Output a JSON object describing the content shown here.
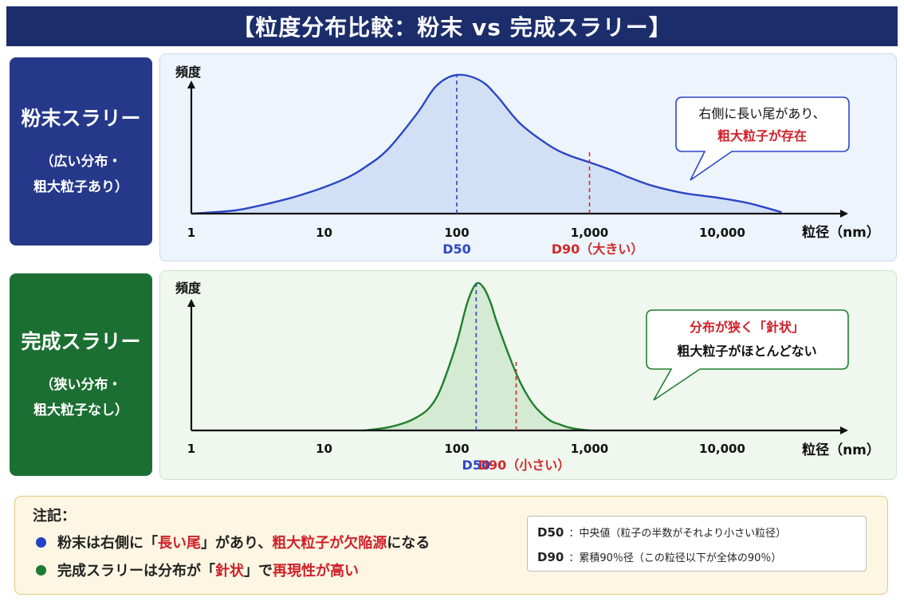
{
  "title": "【粒度分布比較：粉末 vs 完成スラリー】",
  "side_labels": {
    "powder": {
      "main": "粉末スラリー",
      "sub1": "（広い分布・",
      "sub2": "粗大粒子あり）"
    },
    "finished": {
      "main": "完成スラリー",
      "sub1": "（狭い分布・",
      "sub2": "粗大粒子なし）"
    }
  },
  "colors": {
    "powder_line": "#2b47c6",
    "powder_fill": "#d2e0f6",
    "finished_line": "#1f7f2e",
    "finished_fill": "#d4ead2",
    "d50": "#2b47c6",
    "d90": "#d12a2a",
    "accent_red": "#d0202a"
  },
  "chart_data": [
    {
      "type": "area",
      "x_scale": "log",
      "xlim": [
        1,
        30000
      ],
      "ylabel": "頻度",
      "xlabel": "粒径（nm）",
      "xticks": [
        {
          "value": 1,
          "label": "1"
        },
        {
          "value": 10,
          "label": "10"
        },
        {
          "value": 100,
          "label": "100"
        },
        {
          "value": 1000,
          "label": "1,000"
        },
        {
          "value": 10000,
          "label": "10,000"
        }
      ],
      "series": [
        {
          "x": [
            1,
            2,
            3,
            5,
            7,
            10,
            15,
            20,
            30,
            50,
            70,
            100,
            150,
            200,
            300,
            500,
            700,
            1000,
            1500,
            2000,
            3000,
            5000,
            7000,
            10000,
            15000,
            20000,
            28000
          ],
          "y": [
            0,
            0.02,
            0.05,
            0.1,
            0.14,
            0.19,
            0.26,
            0.33,
            0.46,
            0.72,
            0.92,
            1.0,
            0.96,
            0.85,
            0.65,
            0.49,
            0.42,
            0.37,
            0.31,
            0.26,
            0.2,
            0.15,
            0.13,
            0.11,
            0.08,
            0.05,
            0.01
          ]
        }
      ],
      "markers": [
        {
          "name": "D50",
          "x": 100,
          "label": "D50",
          "style": "dashed"
        },
        {
          "name": "D90",
          "x": 1000,
          "label": "D90（大きい）",
          "style": "dashed"
        }
      ],
      "callout": {
        "line1": "右側に長い尾があり、",
        "line2": "粗大粒子が存在"
      },
      "grid": false
    },
    {
      "type": "area",
      "x_scale": "log",
      "xlim": [
        1,
        30000
      ],
      "ylabel": "頻度",
      "xlabel": "粒径（nm）",
      "xticks": [
        {
          "value": 1,
          "label": "1"
        },
        {
          "value": 10,
          "label": "10"
        },
        {
          "value": 100,
          "label": "100"
        },
        {
          "value": 1000,
          "label": "1,000"
        },
        {
          "value": 10000,
          "label": "10,000"
        }
      ],
      "series": [
        {
          "x": [
            20,
            30,
            40,
            50,
            60,
            70,
            80,
            100,
            120,
            140,
            160,
            180,
            200,
            250,
            300,
            350,
            400,
            500,
            600,
            700,
            800,
            1000
          ],
          "y": [
            0,
            0.02,
            0.05,
            0.09,
            0.14,
            0.22,
            0.34,
            0.6,
            0.87,
            1.0,
            0.97,
            0.87,
            0.74,
            0.5,
            0.33,
            0.22,
            0.15,
            0.07,
            0.04,
            0.02,
            0.01,
            0
          ]
        }
      ],
      "markers": [
        {
          "name": "D50",
          "x": 140,
          "label": "D50",
          "style": "dashed"
        },
        {
          "name": "D90",
          "x": 280,
          "label": "D90（小さい）",
          "style": "dashed"
        }
      ],
      "callout": {
        "line1": "分布が狭く「針状」",
        "line2": "粗大粒子がほとんどない"
      },
      "grid": false
    }
  ],
  "notes": {
    "heading": "注記：",
    "line1": {
      "p1": "粉末は右側に「",
      "p2": "長い尾",
      "p3": "」があり、",
      "p4": "粗大粒子が欠陥源",
      "p5": "になる"
    },
    "line2": {
      "p1": "完成スラリーは分布が「",
      "p2": "針状",
      "p3": "」で",
      "p4": "再現性が高い"
    },
    "definitions": [
      {
        "term": "D50",
        "desc": "：中央値（粒子の半数がそれより小さい粒径）"
      },
      {
        "term": "D90",
        "desc": "：累積90％径（この粒径以下が全体の90％）"
      }
    ]
  }
}
